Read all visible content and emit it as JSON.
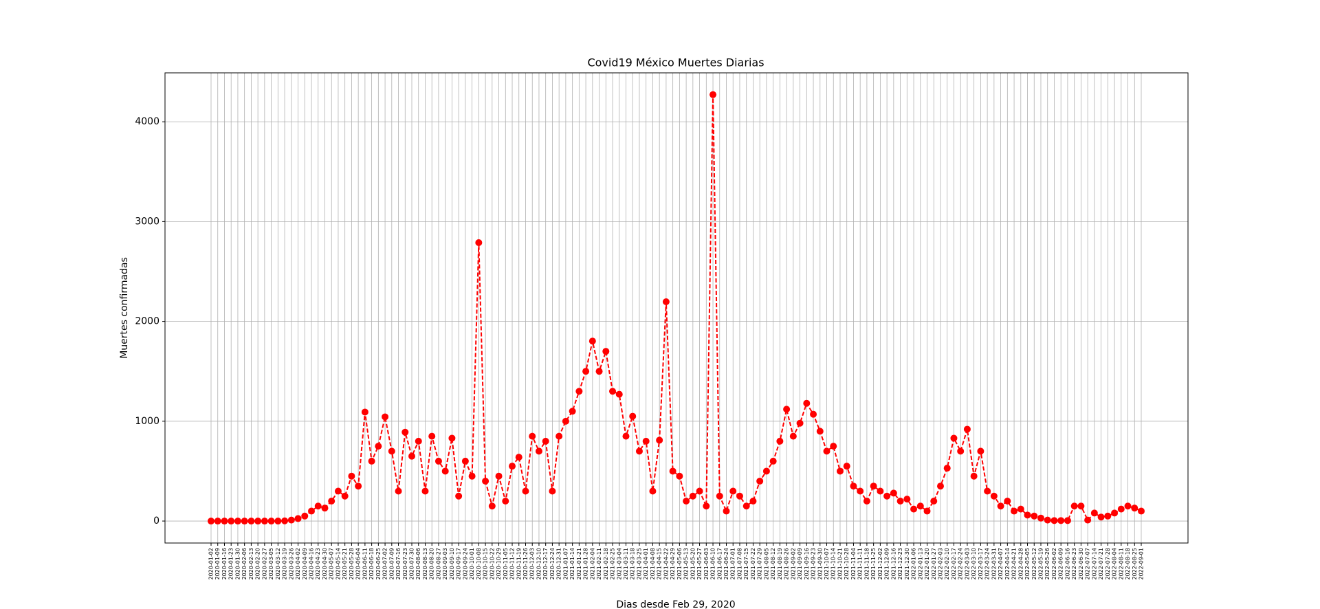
{
  "chart_data": {
    "type": "line",
    "title": "Covid19 México Muertes Diarias",
    "ylabel": "Muertes confirmadas",
    "xlabel": "Dias desde Feb 29, 2020",
    "categories": [
      "2020-01-02",
      "2020-01-09",
      "2020-01-16",
      "2020-01-23",
      "2020-01-30",
      "2020-02-06",
      "2020-02-13",
      "2020-02-20",
      "2020-02-27",
      "2020-03-05",
      "2020-03-12",
      "2020-03-19",
      "2020-03-26",
      "2020-04-02",
      "2020-04-09",
      "2020-04-16",
      "2020-04-23",
      "2020-04-30",
      "2020-05-07",
      "2020-05-14",
      "2020-05-21",
      "2020-05-28",
      "2020-06-04",
      "2020-06-11",
      "2020-06-18",
      "2020-06-25",
      "2020-07-02",
      "2020-07-09",
      "2020-07-16",
      "2020-07-23",
      "2020-07-30",
      "2020-08-06",
      "2020-08-13",
      "2020-08-20",
      "2020-08-27",
      "2020-09-03",
      "2020-09-10",
      "2020-09-17",
      "2020-09-24",
      "2020-10-01",
      "2020-10-08",
      "2020-10-15",
      "2020-10-22",
      "2020-10-29",
      "2020-11-05",
      "2020-11-12",
      "2020-11-19",
      "2020-11-26",
      "2020-12-03",
      "2020-12-10",
      "2020-12-17",
      "2020-12-24",
      "2020-12-31",
      "2021-01-07",
      "2021-01-14",
      "2021-01-21",
      "2021-01-28",
      "2021-02-04",
      "2021-02-11",
      "2021-02-18",
      "2021-02-25",
      "2021-03-04",
      "2021-03-11",
      "2021-03-18",
      "2021-03-25",
      "2021-04-01",
      "2021-04-08",
      "2021-04-15",
      "2021-04-22",
      "2021-04-29",
      "2021-05-06",
      "2021-05-13",
      "2021-05-20",
      "2021-05-27",
      "2021-06-03",
      "2021-06-10",
      "2021-06-17",
      "2021-06-24",
      "2021-07-01",
      "2021-07-08",
      "2021-07-15",
      "2021-07-22",
      "2021-07-29",
      "2021-08-05",
      "2021-08-12",
      "2021-08-19",
      "2021-08-26",
      "2021-09-02",
      "2021-09-09",
      "2021-09-16",
      "2021-09-23",
      "2021-09-30",
      "2021-10-07",
      "2021-10-14",
      "2021-10-21",
      "2021-10-28",
      "2021-11-04",
      "2021-11-11",
      "2021-11-18",
      "2021-11-25",
      "2021-12-02",
      "2021-12-09",
      "2021-12-16",
      "2021-12-23",
      "2021-12-30",
      "2022-01-06",
      "2022-01-13",
      "2022-01-20",
      "2022-01-27",
      "2022-02-03",
      "2022-02-10",
      "2022-02-17",
      "2022-02-24",
      "2022-03-03",
      "2022-03-10",
      "2022-03-17",
      "2022-03-24",
      "2022-03-31",
      "2022-04-07",
      "2022-04-14",
      "2022-04-21",
      "2022-04-28",
      "2022-05-05",
      "2022-05-12",
      "2022-05-19",
      "2022-05-26",
      "2022-06-02",
      "2022-06-09",
      "2022-06-16",
      "2022-06-23",
      "2022-06-30",
      "2022-07-07",
      "2022-07-14",
      "2022-07-21",
      "2022-07-28",
      "2022-08-04",
      "2022-08-11",
      "2022-08-18",
      "2022-08-25",
      "2022-09-01"
    ],
    "values": [
      0,
      0,
      0,
      0,
      0,
      0,
      0,
      0,
      0,
      0,
      0,
      2,
      10,
      25,
      50,
      100,
      150,
      130,
      200,
      300,
      250,
      450,
      350,
      1092,
      600,
      750,
      1044,
      700,
      300,
      890,
      650,
      800,
      300,
      850,
      600,
      500,
      830,
      250,
      600,
      450,
      2789,
      400,
      150,
      450,
      200,
      550,
      640,
      300,
      850,
      700,
      800,
      300,
      850,
      1000,
      1100,
      1300,
      1500,
      1803,
      1500,
      1700,
      1300,
      1270,
      850,
      1050,
      700,
      800,
      300,
      810,
      2197,
      500,
      450,
      200,
      250,
      300,
      150,
      4272,
      250,
      100,
      300,
      250,
      150,
      200,
      400,
      500,
      600,
      800,
      1120,
      850,
      980,
      1180,
      1070,
      900,
      700,
      750,
      500,
      550,
      350,
      300,
      200,
      350,
      300,
      250,
      280,
      200,
      220,
      120,
      150,
      100,
      200,
      350,
      530,
      830,
      700,
      920,
      450,
      700,
      300,
      250,
      150,
      200,
      100,
      120,
      60,
      50,
      30,
      10,
      5,
      5,
      5,
      150,
      150,
      10,
      80,
      40,
      50,
      80,
      120,
      150,
      130,
      100
    ],
    "color": "#ff0000",
    "linestyle": "dashed",
    "marker": "o",
    "ylim": [
      -220,
      4490
    ],
    "yticks": [
      0,
      1000,
      2000,
      3000,
      4000
    ],
    "grid": true
  }
}
